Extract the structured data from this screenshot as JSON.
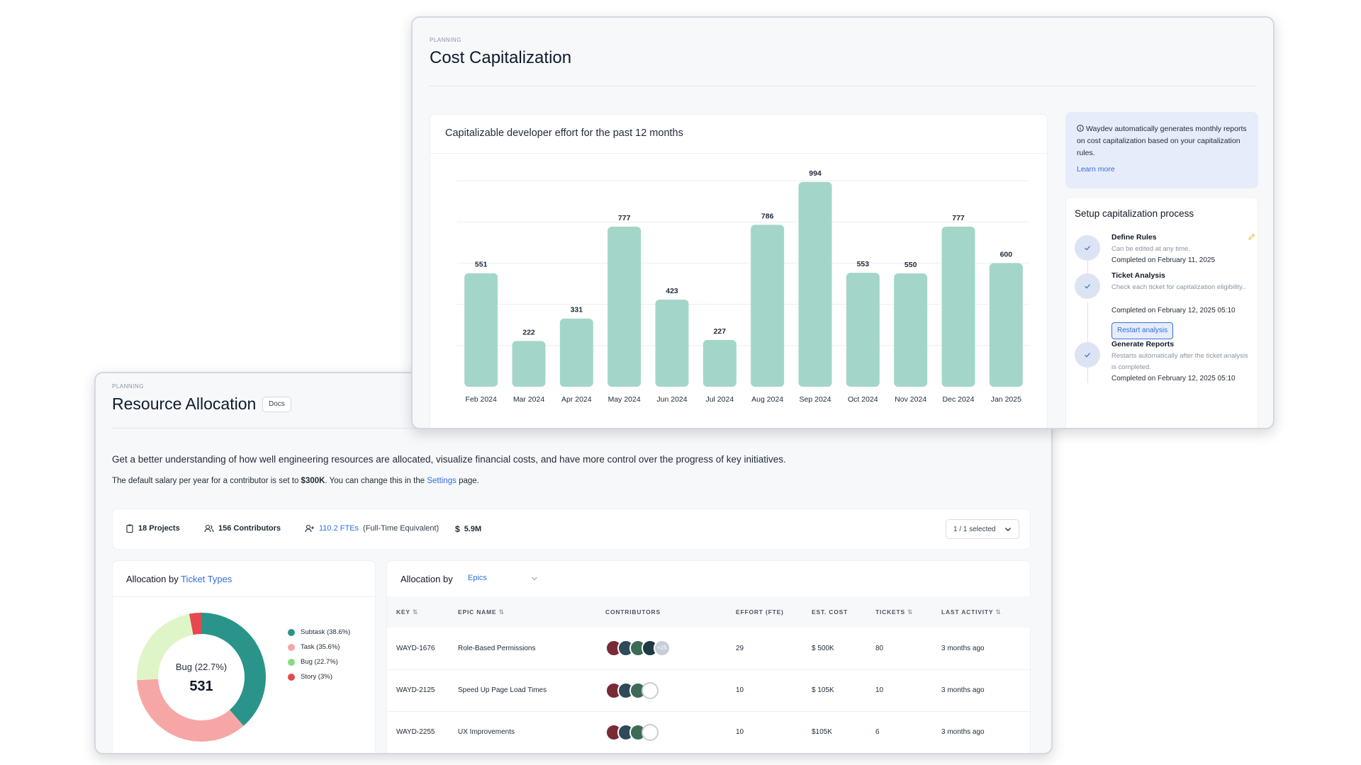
{
  "resource_allocation": {
    "eyebrow": "PLANNING",
    "title": "Resource Allocation",
    "docs_label": "Docs",
    "intro": "Get a better understanding of how well engineering resources are allocated, visualize financial costs, and have more control over the progress of key initiatives.",
    "salary_prefix": "The default salary per year for a contributor is set to ",
    "salary_value": "$300K",
    "salary_mid": ". You can change this in the ",
    "salary_link": "Settings",
    "salary_suffix": " page.",
    "stats": {
      "projects": "18 Projects",
      "contributors": "156 Contributors",
      "ftes_value": "110.2 FTEs",
      "ftes_note": "(Full-Time Equivalent)",
      "cost": "5.9M",
      "selection": "1 / 1 selected"
    },
    "ticket_types": {
      "heading_prefix": "Allocation by ",
      "heading_link": "Ticket Types",
      "center_label": "Bug (22.7%)",
      "center_value": "531",
      "legend": [
        {
          "label": "Subtask (38.6%)",
          "value": 38.6,
          "color": "#2a948a"
        },
        {
          "label": "Task (35.6%)",
          "value": 35.6,
          "color": "#f7a6a6"
        },
        {
          "label": "Bug (22.7%)",
          "value": 22.7,
          "color": "#dff5c8"
        },
        {
          "label": "Story (3%)",
          "value": 3,
          "color": "#e5484d"
        }
      ],
      "legend_dot_colors": [
        "#2a948a",
        "#f7a6a6",
        "#86dc7e",
        "#e5484d"
      ]
    },
    "epics": {
      "heading": "Allocation by",
      "dropdown": "Epics",
      "columns": [
        "KEY",
        "EPIC NAME",
        "CONTRIBUTORS",
        "EFFORT (FTE)",
        "EST. COST",
        "TICKETS",
        "LAST ACTIVITY"
      ],
      "rows": [
        {
          "key": "WAYD-1676",
          "name": "Role-Based Permissions",
          "more": "+25",
          "effort": "29",
          "cost": "$ 500K",
          "tickets": "80",
          "last": "3 months ago"
        },
        {
          "key": "WAYD-2125",
          "name": "Speed Up Page Load Times",
          "more": "",
          "effort": "10",
          "cost": "$ 105K",
          "tickets": "10",
          "last": "3 months ago"
        },
        {
          "key": "WAYD-2255",
          "name": "UX Improvements",
          "more": "",
          "effort": "10",
          "cost": "$105K",
          "tickets": "6",
          "last": "3 months ago"
        }
      ]
    }
  },
  "cost_capitalization": {
    "eyebrow": "PLANNING",
    "title": "Cost Capitalization",
    "chart_title": "Capitalizable developer effort for the past 12 months",
    "info_text": "Waydev automatically generates monthly reports on cost capitalization based on your capitalization rules.",
    "info_link": "Learn more",
    "setup_title": "Setup capitalization process",
    "steps": [
      {
        "title": "Define Rules",
        "desc": "Can be edited at any time.",
        "done": "Completed on February 11, 2025"
      },
      {
        "title": "Ticket Analysis",
        "desc": "Check each ticket for capitalization eligibility..",
        "done": "Completed on February 12, 2025 05:10",
        "button": "Restart analysis"
      },
      {
        "title": "Generate Reports",
        "desc": "Restarts automatically after the ticket analysis is completed.",
        "done": "Completed on February 12, 2025 05:10"
      }
    ]
  },
  "chart_data": {
    "type": "bar",
    "title": "Capitalizable developer effort for the past 12 months",
    "categories": [
      "Feb 2024",
      "Mar 2024",
      "Apr 2024",
      "May 2024",
      "Jun 2024",
      "Jul 2024",
      "Aug 2024",
      "Sep 2024",
      "Oct 2024",
      "Nov 2024",
      "Dec 2024",
      "Jan 2025"
    ],
    "values": [
      551,
      222,
      331,
      777,
      423,
      227,
      786,
      994,
      553,
      550,
      777,
      600
    ],
    "ylim": [
      0,
      1100
    ],
    "grid": true,
    "bar_color": "#a3d6c9"
  },
  "colors": {
    "accent": "#2f6fdc",
    "bar": "#a3d6c9",
    "info_bg": "#e6ecf9"
  }
}
